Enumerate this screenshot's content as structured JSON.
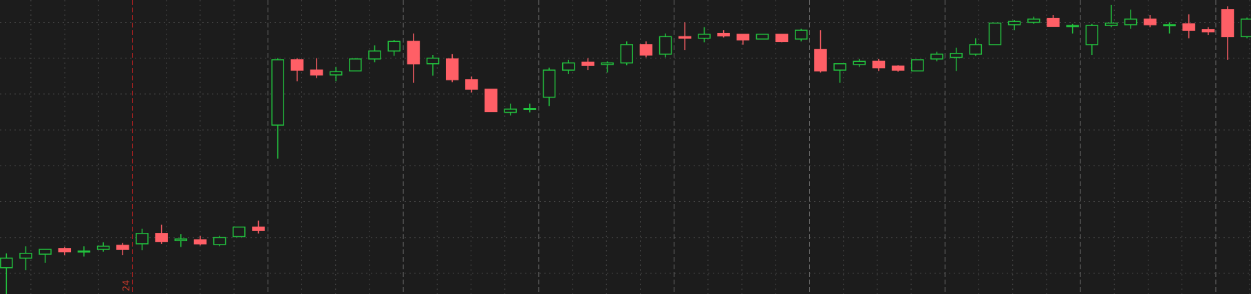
{
  "chart_data": {
    "type": "candlestick",
    "up_color": "#22c23e",
    "down_color": "#ff5f66",
    "ylim": [
      0,
      369
    ],
    "date_label": "24",
    "open": [
      33,
      45,
      50,
      57,
      53,
      56,
      61,
      63,
      76,
      67,
      68,
      62,
      72,
      84,
      212,
      294,
      281,
      275,
      280,
      295,
      305,
      317,
      289,
      295,
      269,
      257,
      228,
      232,
      247,
      281,
      291,
      288,
      290,
      313,
      301,
      323,
      321,
      327,
      326,
      320,
      326,
      320,
      307,
      281,
      288,
      292,
      286,
      280,
      295,
      297,
      301,
      313,
      338,
      341,
      346,
      336,
      313,
      337,
      338,
      345,
      337,
      339,
      332,
      357,
      323
    ],
    "high": [
      51,
      60,
      56,
      59,
      60,
      65,
      64,
      82,
      87,
      75,
      73,
      73,
      84,
      92,
      296,
      296,
      296,
      285,
      296,
      312,
      319,
      327,
      300,
      301,
      273,
      257,
      239,
      239,
      284,
      294,
      296,
      292,
      317,
      317,
      327,
      341,
      335,
      331,
      326,
      326,
      326,
      333,
      331,
      289,
      295,
      295,
      287,
      294,
      304,
      309,
      321,
      340,
      344,
      348,
      350,
      339,
      339,
      363,
      357,
      350,
      341,
      351,
      335,
      361,
      347
    ],
    "low": [
      0,
      30,
      39,
      49,
      47,
      53,
      49,
      55,
      63,
      59,
      61,
      60,
      72,
      76,
      170,
      267,
      271,
      267,
      280,
      291,
      299,
      265,
      274,
      266,
      253,
      229,
      224,
      228,
      236,
      276,
      281,
      278,
      287,
      297,
      297,
      306,
      316,
      322,
      313,
      320,
      316,
      317,
      278,
      265,
      285,
      280,
      279,
      280,
      292,
      280,
      299,
      313,
      331,
      339,
      336,
      327,
      300,
      335,
      333,
      335,
      327,
      321,
      325,
      294,
      321
    ],
    "close": [
      45,
      51,
      56,
      53,
      54,
      60,
      56,
      76,
      66,
      69,
      63,
      71,
      84,
      80,
      294,
      281,
      275,
      279,
      295,
      305,
      317,
      289,
      296,
      269,
      257,
      229,
      232,
      233,
      281,
      290,
      287,
      290,
      313,
      300,
      323,
      321,
      326,
      324,
      319,
      326,
      317,
      331,
      280,
      289,
      292,
      284,
      281,
      294,
      301,
      302,
      313,
      340,
      342,
      345,
      336,
      337,
      337,
      340,
      345,
      338,
      338,
      331,
      329,
      323,
      345
    ]
  }
}
